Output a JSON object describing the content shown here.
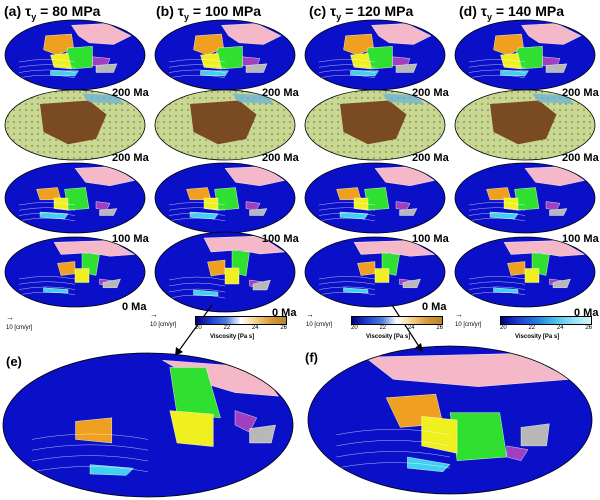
{
  "figure": {
    "columns": [
      {
        "label": "(a) τ",
        "sub": "y",
        "value": "= 80 MPa"
      },
      {
        "label": "(b) τ",
        "sub": "y",
        "value": "= 100 MPa"
      },
      {
        "label": "(c) τ",
        "sub": "y",
        "value": "= 120 MPa"
      },
      {
        "label": "(d) τ",
        "sub": "y",
        "value": "= 140 MPa"
      }
    ],
    "row_ages": [
      "200 Ma",
      "200 Ma",
      "100 Ma",
      "0 Ma"
    ],
    "legend": {
      "velocity": "10 [cm/yr]",
      "ticks": [
        "20",
        "22",
        "24",
        "26"
      ],
      "caption": "Viscosity [Pa s]"
    },
    "panel_e": "(e)",
    "panel_f": "(f)",
    "colors": {
      "ocean": "#0a10c8",
      "pink": "#f4b8c8",
      "orange": "#f0a020",
      "green": "#30e030",
      "yellow": "#f0f020",
      "purple": "#a040c0",
      "cyan": "#40d0f0",
      "gray": "#b8b8b8",
      "brown": "#7a4a22",
      "sand": "#c8d890"
    }
  }
}
